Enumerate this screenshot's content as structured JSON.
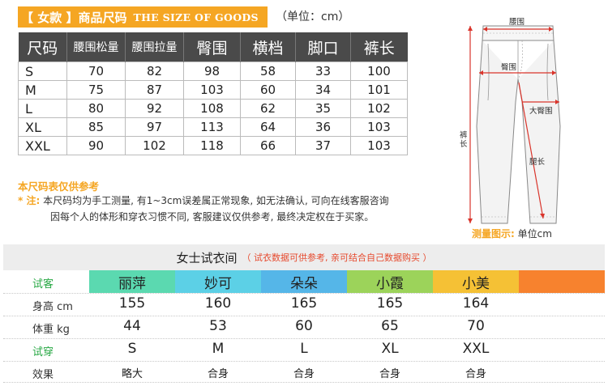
{
  "header": {
    "tag": "【 女款 】",
    "title_cn": "商品尺码",
    "title_en": "THE SIZE OF GOODS",
    "unit_note": "（单位：cm）"
  },
  "size_table": {
    "headers": [
      "尺码",
      "腰围松量",
      "腰围拉量",
      "臀围",
      "横档",
      "脚口",
      "裤长"
    ],
    "rows": [
      [
        "S",
        "70",
        "82",
        "98",
        "58",
        "33",
        "100"
      ],
      [
        "M",
        "75",
        "87",
        "103",
        "60",
        "34",
        "101"
      ],
      [
        "L",
        "80",
        "92",
        "108",
        "62",
        "35",
        "102"
      ],
      [
        "XL",
        "85",
        "97",
        "113",
        "64",
        "36",
        "103"
      ],
      [
        "XXL",
        "90",
        "102",
        "118",
        "66",
        "37",
        "103"
      ]
    ]
  },
  "notes": {
    "title": "本尺码表仅供参考",
    "star": "* 注:",
    "line1": "本尺码均为手工测量, 有1~3cm误差属正常现象, 如无法确认, 可向在线客服咨询",
    "line2": "因每个人的体形和穿衣习惯不同, 客服建议仅供参考, 最终决定权在于买家。"
  },
  "diagram": {
    "waist": "腰围",
    "hip": "臀围",
    "length": "裤长",
    "thigh": "大臀围",
    "leg": "腿长",
    "caption": "测量图示:",
    "caption_unit": "单位cm"
  },
  "tryon": {
    "title": "女士试衣间",
    "subtitle": "（ 试衣数据可供参考, 亲可结合自己数据购买 ）",
    "labels": {
      "model": "试客",
      "height": "身高  cm",
      "weight": "体重  kg",
      "tried": "试穿",
      "effect": "效果"
    },
    "models": [
      {
        "name": "丽萍",
        "color": "#5bd9b0",
        "height": "155",
        "weight": "44",
        "size": "S",
        "effect": "略大"
      },
      {
        "name": "妙可",
        "color": "#5cd0e6",
        "height": "160",
        "weight": "53",
        "size": "M",
        "effect": "合身"
      },
      {
        "name": "朵朵",
        "color": "#55b6e8",
        "height": "165",
        "weight": "60",
        "size": "L",
        "effect": "合身"
      },
      {
        "name": "小霞",
        "color": "#9cd35a",
        "height": "165",
        "weight": "65",
        "size": "XL",
        "effect": "合身"
      },
      {
        "name": "小美",
        "color": "#f5c135",
        "height": "164",
        "weight": "70",
        "size": "XXL",
        "effect": "合身"
      }
    ],
    "extra_color": "#f7822e"
  }
}
